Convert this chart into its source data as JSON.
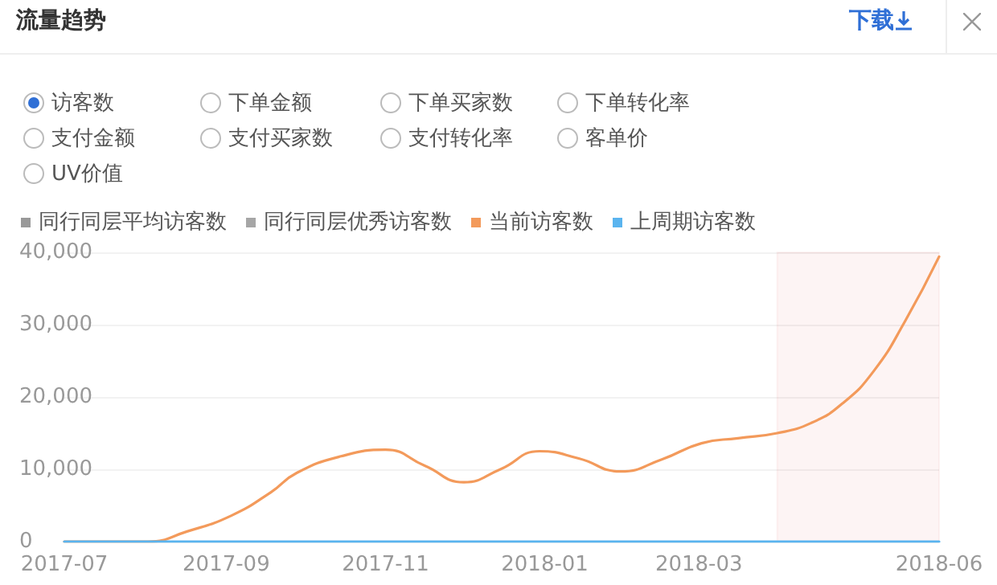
{
  "chart_data": {
    "type": "line",
    "title": "流量趋势",
    "annotations": [
      "下载",
      "访客数",
      "下单金额",
      "下单买家数",
      "下单转化率",
      "支付金额",
      "支付买家数",
      "支付转化率",
      "客单价",
      "UV价值"
    ],
    "x": [
      "2017-07-01",
      "2017-08-02",
      "2017-08-17",
      "2017-09-03",
      "2017-09-18",
      "2017-09-28",
      "2017-10-15",
      "2017-11-01",
      "2017-11-16",
      "2017-12-01",
      "2017-12-15",
      "2017-12-30",
      "2018-01-14",
      "2018-01-30",
      "2018-02-15",
      "2018-03-02",
      "2018-03-16",
      "2018-03-31",
      "2018-04-13",
      "2018-04-25",
      "2018-05-07",
      "2018-05-19",
      "2018-06-01"
    ],
    "series": [
      {
        "name": "同行同层平均访客数",
        "color": "#999999",
        "values": [
          null,
          null,
          null,
          null,
          null,
          null,
          null,
          null,
          null,
          null,
          null,
          null,
          null,
          null,
          null,
          null,
          null,
          null,
          null,
          null,
          null,
          null,
          null
        ]
      },
      {
        "name": "同行同层优秀访客数",
        "color": "#a6a6a6",
        "values": [
          null,
          null,
          null,
          null,
          null,
          null,
          null,
          null,
          null,
          null,
          null,
          null,
          null,
          null,
          null,
          null,
          null,
          null,
          null,
          null,
          null,
          null,
          null
        ]
      },
      {
        "name": "当前访客数",
        "color": "#f39a5b",
        "values": [
          0,
          0,
          1400,
          3600,
          6800,
          9500,
          11800,
          12700,
          10500,
          8200,
          10000,
          12500,
          11500,
          9700,
          11400,
          13600,
          14300,
          15000,
          16400,
          19100,
          23600,
          30500,
          39400
        ]
      },
      {
        "name": "上周期访客数",
        "color": "#5ab4ef",
        "values": [
          0,
          0,
          0,
          0,
          0,
          0,
          0,
          0,
          0,
          0,
          0,
          0,
          0,
          0,
          0,
          0,
          0,
          0,
          0,
          0,
          0,
          0,
          0
        ]
      }
    ],
    "xlim": [
      "2017-07-01",
      "2018-06-01"
    ],
    "xticks": [
      "2017-07",
      "2017-09",
      "2017-11",
      "2018-01",
      "2018-03",
      "2018-06"
    ],
    "ylim": [
      0,
      40000
    ],
    "yticks": [
      0,
      {
        "value": 10000,
        "label": "10,000"
      },
      {
        "value": 20000,
        "label": "20,000"
      },
      {
        "value": 30000,
        "label": "30,000"
      },
      {
        "value": 40000,
        "label": "40,000"
      }
    ],
    "bands": [
      {
        "axis": "x",
        "from": "2018-03-31",
        "to": "2018-06-01",
        "color": "#e0404a"
      }
    ],
    "grid": "y",
    "legend": "top left",
    "marker": "none",
    "line_style": "solid"
  }
}
